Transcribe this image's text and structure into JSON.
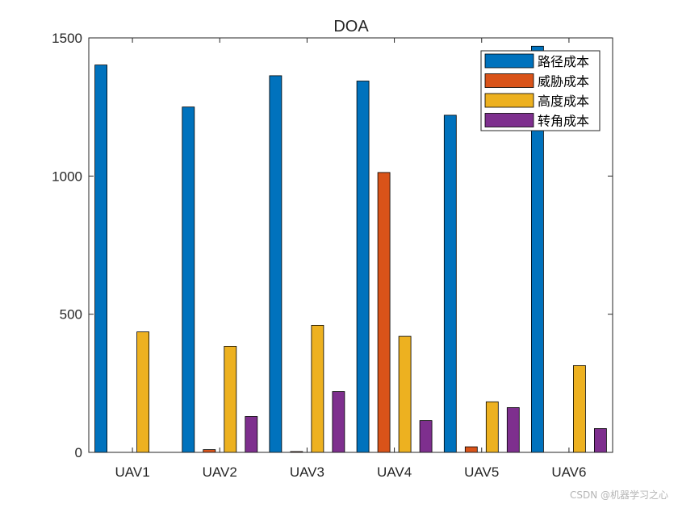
{
  "chart_data": {
    "type": "bar",
    "title": "DOA",
    "xlabel": "",
    "ylabel": "",
    "ylim": [
      0,
      1500
    ],
    "yticks": [
      0,
      500,
      1000,
      1500
    ],
    "grid": false,
    "legend_position": "top-right",
    "categories": [
      "UAV1",
      "UAV2",
      "UAV3",
      "UAV4",
      "UAV5",
      "UAV6"
    ],
    "series": [
      {
        "name": "路径成本",
        "color": "#0072BD",
        "values": [
          1402,
          1250,
          1363,
          1344,
          1220,
          1470
        ]
      },
      {
        "name": "威胁成本",
        "color": "#D95319",
        "values": [
          0,
          10,
          3,
          1013,
          20,
          0
        ]
      },
      {
        "name": "高度成本",
        "color": "#EDB120",
        "values": [
          436,
          384,
          460,
          420,
          183,
          314
        ]
      },
      {
        "name": "转角成本",
        "color": "#7E2F8E",
        "values": [
          0,
          130,
          220,
          115,
          162,
          86
        ]
      }
    ]
  },
  "watermark": "CSDN @机器学习之心"
}
